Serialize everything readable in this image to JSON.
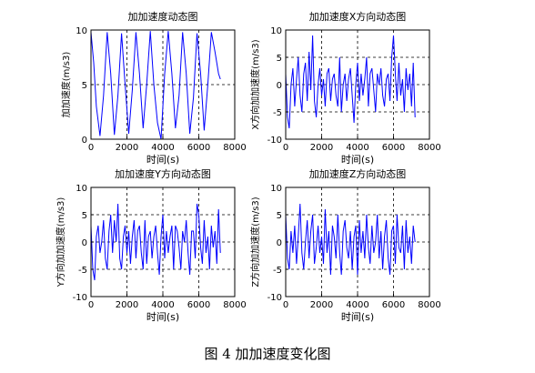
{
  "caption": "图 4  加加速度变化图",
  "chart_data": [
    {
      "type": "line",
      "title": "加加速度动态图",
      "xlabel": "时间(s)",
      "ylabel": "加加速度(m/s3)",
      "xlim": [
        0,
        8000
      ],
      "ylim": [
        0,
        10
      ],
      "xticks": [
        0,
        2000,
        4000,
        6000,
        8000
      ],
      "yticks": [
        0,
        5,
        10
      ],
      "grid": true,
      "line_color": "#0000ff",
      "x": [
        0,
        150,
        300,
        500,
        700,
        900,
        1100,
        1300,
        1500,
        1700,
        1900,
        2100,
        2300,
        2500,
        2700,
        2900,
        3100,
        3300,
        3500,
        3700,
        3900,
        4100,
        4300,
        4500,
        4700,
        4900,
        5100,
        5300,
        5500,
        5700,
        5900,
        6100,
        6300,
        6500,
        6700,
        6900,
        7100,
        7200
      ],
      "y": [
        9.8,
        7,
        3,
        0.3,
        4,
        9.8,
        6,
        0.4,
        4,
        9.7,
        5,
        0.5,
        4.5,
        9.8,
        6,
        1,
        5,
        9.9,
        5,
        1.5,
        0,
        6,
        9.9,
        6,
        1,
        4,
        9.8,
        6,
        0.5,
        3.8,
        9.7,
        6,
        0.8,
        5,
        9.8,
        8,
        6,
        5.5
      ]
    },
    {
      "type": "line",
      "title": "加加速度X方向动态图",
      "xlabel": "时间(s)",
      "ylabel": "X方向加加速度(m/s3)",
      "xlim": [
        0,
        8000
      ],
      "ylim": [
        -10,
        10
      ],
      "xticks": [
        0,
        2000,
        4000,
        6000,
        8000
      ],
      "yticks": [
        -10,
        -5,
        0,
        5,
        10
      ],
      "grid": true,
      "line_color": "#0000ff",
      "x": [
        0,
        100,
        200,
        300,
        400,
        500,
        600,
        700,
        800,
        900,
        1000,
        1100,
        1200,
        1300,
        1400,
        1500,
        1600,
        1700,
        1800,
        1900,
        2000,
        2100,
        2200,
        2300,
        2400,
        2500,
        2600,
        2700,
        2800,
        2900,
        3000,
        3100,
        3200,
        3300,
        3400,
        3500,
        3600,
        3700,
        3800,
        3900,
        4000,
        4100,
        4200,
        4300,
        4400,
        4500,
        4600,
        4700,
        4800,
        4900,
        5000,
        5100,
        5200,
        5300,
        5400,
        5500,
        5600,
        5700,
        5800,
        5900,
        6000,
        6100,
        6200,
        6300,
        6400,
        6500,
        6600,
        6700,
        6800,
        6900,
        7000,
        7100,
        7200
      ],
      "y": [
        2,
        -6,
        -8,
        0,
        3,
        -4,
        1,
        5,
        -2,
        -5,
        2,
        4,
        -3,
        6,
        -1,
        9,
        -3,
        -6,
        0,
        3,
        -2,
        1,
        -4,
        2,
        3,
        -3,
        1,
        2,
        -2,
        -4,
        5,
        -5,
        0,
        2,
        -3,
        1,
        3,
        -2,
        -7,
        0,
        4,
        -3,
        2,
        -2,
        1,
        5,
        -4,
        2,
        3,
        -1,
        -5,
        2,
        0,
        3,
        -2,
        -4,
        1,
        2,
        -3,
        5,
        9,
        2,
        -3,
        4,
        -2,
        1,
        -5,
        3,
        -1,
        2,
        -4,
        4,
        -6
      ]
    },
    {
      "type": "line",
      "title": "加加速度Y方向动态图",
      "xlabel": "时间(s)",
      "ylabel": "Y方向加加速度(m/s3)",
      "xlim": [
        0,
        8000
      ],
      "ylim": [
        -10,
        10
      ],
      "xticks": [
        0,
        2000,
        4000,
        6000,
        8000
      ],
      "yticks": [
        -10,
        -5,
        0,
        5,
        10
      ],
      "grid": true,
      "line_color": "#0000ff",
      "x": [
        0,
        100,
        200,
        300,
        400,
        500,
        600,
        700,
        800,
        900,
        1000,
        1100,
        1200,
        1300,
        1400,
        1500,
        1600,
        1700,
        1800,
        1900,
        2000,
        2100,
        2200,
        2300,
        2400,
        2500,
        2600,
        2700,
        2800,
        2900,
        3000,
        3100,
        3200,
        3300,
        3400,
        3500,
        3600,
        3700,
        3800,
        3900,
        4000,
        4100,
        4200,
        4300,
        4400,
        4500,
        4600,
        4700,
        4800,
        4900,
        5000,
        5100,
        5200,
        5300,
        5400,
        5500,
        5600,
        5700,
        5800,
        5900,
        6000,
        6100,
        6200,
        6300,
        6400,
        6500,
        6600,
        6700,
        6800,
        6900,
        7000,
        7100,
        7200
      ],
      "y": [
        3,
        -5,
        -7,
        1,
        3,
        -2,
        0,
        4,
        -3,
        -5,
        2,
        5,
        -2,
        4,
        0,
        7,
        -3,
        -5,
        1,
        3,
        -2,
        2,
        -4,
        1,
        4,
        -3,
        2,
        3,
        -2,
        -5,
        4,
        -4,
        1,
        2,
        -3,
        1,
        3,
        -2,
        -6,
        1,
        5,
        -3,
        2,
        -2,
        1,
        3,
        -5,
        3,
        2,
        -1,
        -5,
        2,
        0,
        4,
        -2,
        -6,
        2,
        2,
        -3,
        7,
        5,
        -1,
        -4,
        4,
        -2,
        1,
        -5,
        3,
        -1,
        2,
        -4,
        6,
        -2
      ]
    },
    {
      "type": "line",
      "title": "加加速度Z方向动态图",
      "xlabel": "时间(s)",
      "ylabel": "Z方向加加速度(m/s3)",
      "xlim": [
        0,
        8000
      ],
      "ylim": [
        -10,
        10
      ],
      "xticks": [
        0,
        2000,
        4000,
        6000,
        8000
      ],
      "yticks": [
        -10,
        -5,
        0,
        5,
        10
      ],
      "grid": true,
      "line_color": "#0000ff",
      "x": [
        0,
        100,
        200,
        300,
        400,
        500,
        600,
        700,
        800,
        900,
        1000,
        1100,
        1200,
        1300,
        1400,
        1500,
        1600,
        1700,
        1800,
        1900,
        2000,
        2100,
        2200,
        2300,
        2400,
        2500,
        2600,
        2700,
        2800,
        2900,
        3000,
        3100,
        3200,
        3300,
        3400,
        3500,
        3600,
        3700,
        3800,
        3900,
        4000,
        4100,
        4200,
        4300,
        4400,
        4500,
        4600,
        4700,
        4800,
        4900,
        5000,
        5100,
        5200,
        5300,
        5400,
        5500,
        5600,
        5700,
        5800,
        5900,
        6000,
        6100,
        6200,
        6300,
        6400,
        6500,
        6600,
        6700,
        6800,
        6900,
        7000,
        7100,
        7200
      ],
      "y": [
        5,
        -3,
        -5,
        2,
        -2,
        3,
        -4,
        1,
        7,
        -2,
        -5,
        0,
        4,
        -3,
        2,
        5,
        -4,
        -1,
        3,
        -2,
        1,
        -4,
        6,
        -2,
        2,
        -6,
        3,
        1,
        -3,
        5,
        -2,
        -6,
        2,
        4,
        -1,
        -3,
        2,
        -5,
        1,
        3,
        -6,
        4,
        -2,
        2,
        -3,
        5,
        -1,
        -4,
        3,
        -2,
        0,
        5,
        -3,
        2,
        -5,
        1,
        4,
        -3,
        -6,
        2,
        3,
        -4,
        5,
        -1,
        -2,
        3,
        -5,
        4,
        -2,
        1,
        -4,
        3,
        0
      ]
    }
  ]
}
